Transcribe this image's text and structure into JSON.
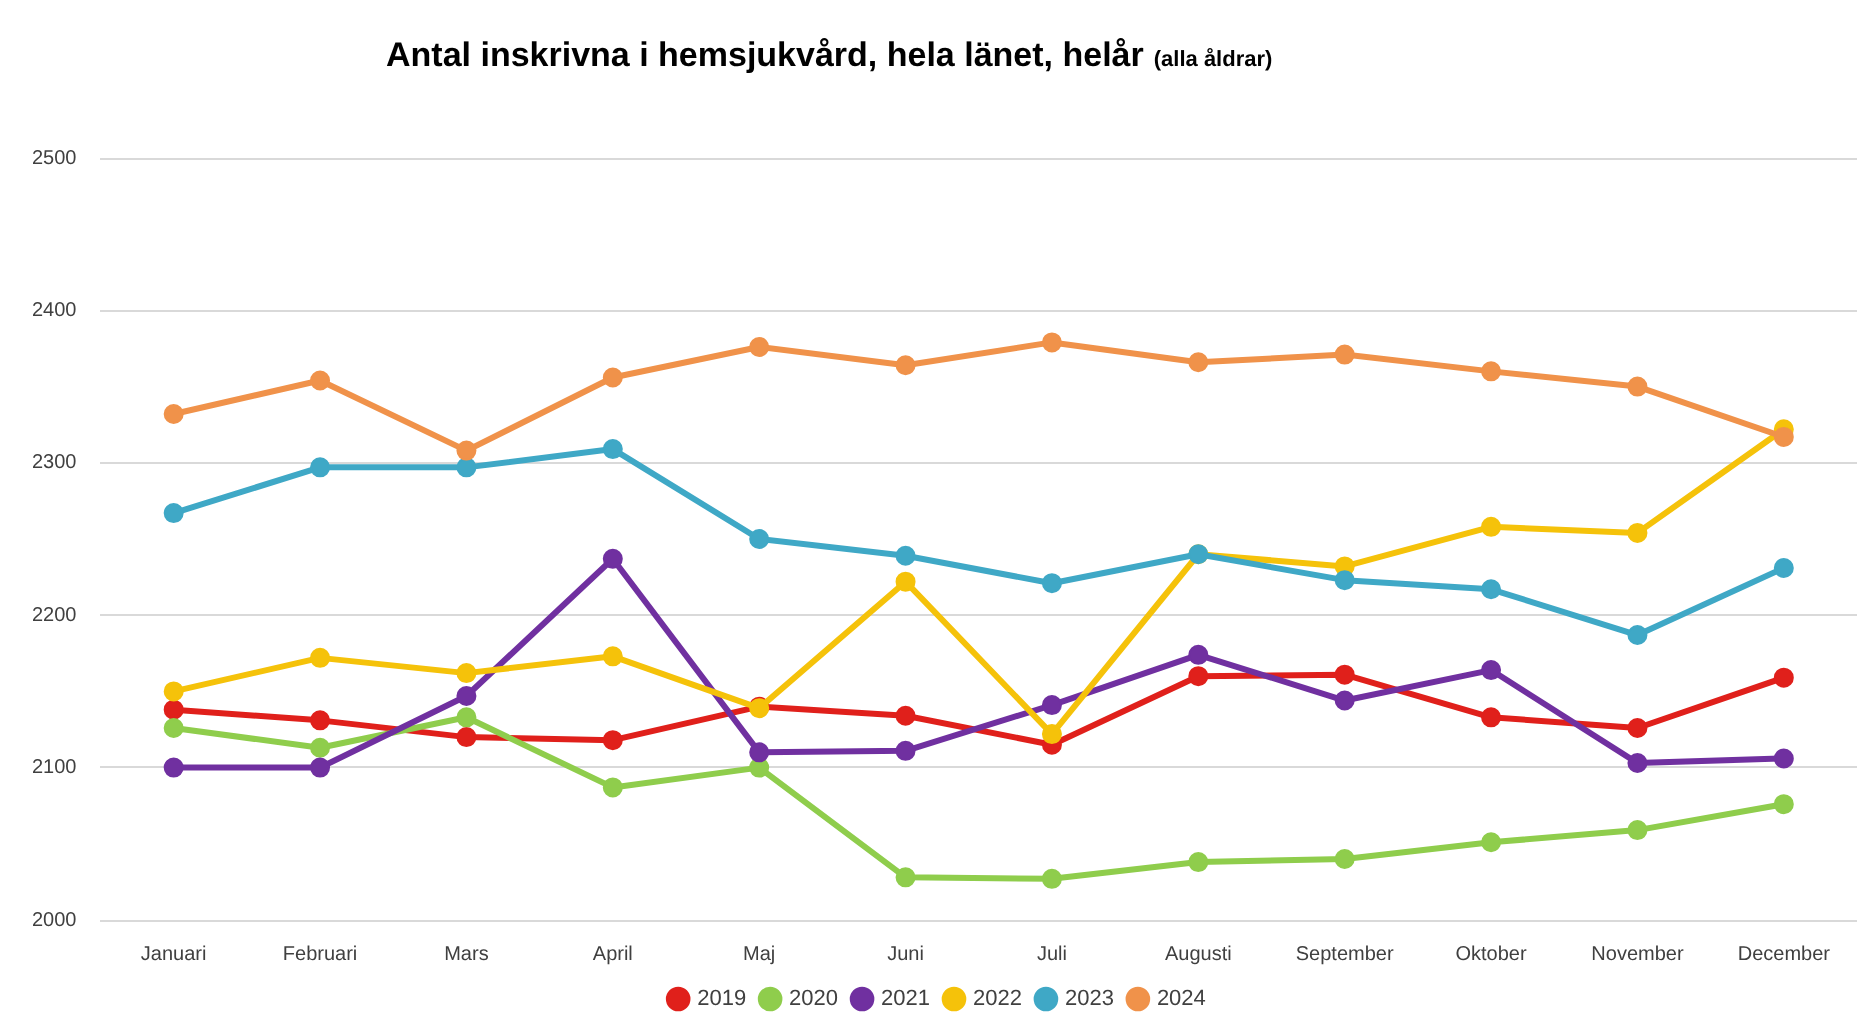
{
  "chart_data": {
    "type": "line",
    "title": "Antal inskrivna i hemsjukvård, hela länet, helår",
    "subtitle": "(alla åldrar)",
    "categories": [
      "Januari",
      "Februari",
      "Mars",
      "April",
      "Maj",
      "Juni",
      "Juli",
      "Augusti",
      "September",
      "Oktober",
      "November",
      "December"
    ],
    "series": [
      {
        "name": "2019",
        "color": "#e0201b",
        "values": [
          2138,
          2131,
          2120,
          2118,
          2140,
          2134,
          2115,
          2160,
          2161,
          2133,
          2126,
          2159
        ]
      },
      {
        "name": "2020",
        "color": "#8fcd4c",
        "values": [
          2126,
          2113,
          2133,
          2087,
          2100,
          2028,
          2027,
          2038,
          2040,
          2051,
          2059,
          2076
        ]
      },
      {
        "name": "2021",
        "color": "#7030a0",
        "values": [
          2100,
          2100,
          2147,
          2237,
          2110,
          2111,
          2141,
          2174,
          2144,
          2164,
          2103,
          2106
        ]
      },
      {
        "name": "2022",
        "color": "#f5c20a",
        "values": [
          2150,
          2172,
          2162,
          2173,
          2139,
          2222,
          2122,
          2240,
          2232,
          2258,
          2254,
          2322
        ]
      },
      {
        "name": "2023",
        "color": "#3fa8c6",
        "values": [
          2267,
          2297,
          2297,
          2309,
          2250,
          2239,
          2221,
          2240,
          2223,
          2217,
          2187,
          2231
        ]
      },
      {
        "name": "2024",
        "color": "#f0924a",
        "values": [
          2332,
          2354,
          2308,
          2356,
          2376,
          2364,
          2379,
          2366,
          2371,
          2360,
          2350,
          2317
        ]
      }
    ],
    "ylim": [
      2000,
      2500
    ],
    "yticks": [
      2000,
      2100,
      2200,
      2300,
      2400,
      2500
    ],
    "grid": "y",
    "legend": "bottom",
    "marker": "circle"
  }
}
